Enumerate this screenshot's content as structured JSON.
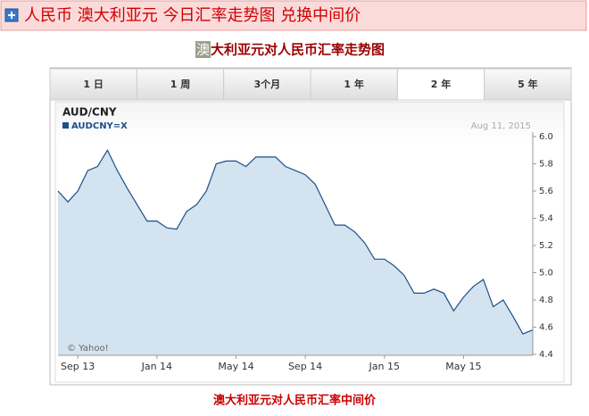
{
  "header": {
    "title": "人民币 澳大利亚元 今日汇率走势图 兑换中间价"
  },
  "subtitle": {
    "highlight": "澳",
    "rest": "大利亚元对人民币汇率走势图"
  },
  "tabs": [
    {
      "label": "1 日",
      "selected": false
    },
    {
      "label": "1 周",
      "selected": false
    },
    {
      "label": "3个月",
      "selected": false
    },
    {
      "label": "1 年",
      "selected": false
    },
    {
      "label": "2 年",
      "selected": true
    },
    {
      "label": "5 年",
      "selected": false
    }
  ],
  "chart_data": {
    "type": "area",
    "title": "AUD/CNY",
    "date": "Aug 11, 2015",
    "credit": "© Yahoo!",
    "categories": [
      null,
      null,
      "Sep 13",
      null,
      null,
      null,
      null,
      null,
      null,
      null,
      "Jan 14",
      null,
      null,
      null,
      null,
      null,
      null,
      null,
      "May 14",
      null,
      null,
      null,
      null,
      null,
      null,
      "Sep 14",
      null,
      null,
      null,
      null,
      null,
      null,
      null,
      "Jan 15",
      null,
      null,
      null,
      null,
      null,
      null,
      null,
      "May 15",
      null,
      null,
      null,
      null,
      null,
      null,
      null
    ],
    "series": [
      {
        "name": "AUDCNY=X",
        "color": "#1d4f8a",
        "fill": "#d3e3f0",
        "values": [
          5.6,
          5.52,
          5.6,
          5.75,
          5.78,
          5.9,
          5.75,
          5.62,
          5.5,
          5.38,
          5.38,
          5.33,
          5.32,
          5.45,
          5.5,
          5.6,
          5.8,
          5.82,
          5.82,
          5.78,
          5.85,
          5.85,
          5.85,
          5.78,
          5.75,
          5.72,
          5.65,
          5.5,
          5.35,
          5.35,
          5.3,
          5.22,
          5.1,
          5.1,
          5.05,
          4.98,
          4.85,
          4.85,
          4.88,
          4.85,
          4.72,
          4.82,
          4.9,
          4.95,
          4.75,
          4.8,
          4.68,
          4.55,
          4.58
        ]
      }
    ],
    "ylim": [
      4.4,
      6.0
    ],
    "yticks": [
      4.4,
      4.6,
      4.8,
      {
        "value": 5.0,
        "label": "5.0"
      },
      5.2,
      5.4,
      5.6,
      5.8,
      {
        "value": 6.0,
        "label": "6.0"
      }
    ]
  },
  "footer": {
    "text": "澳大利亚元对人民币汇率中间价"
  }
}
